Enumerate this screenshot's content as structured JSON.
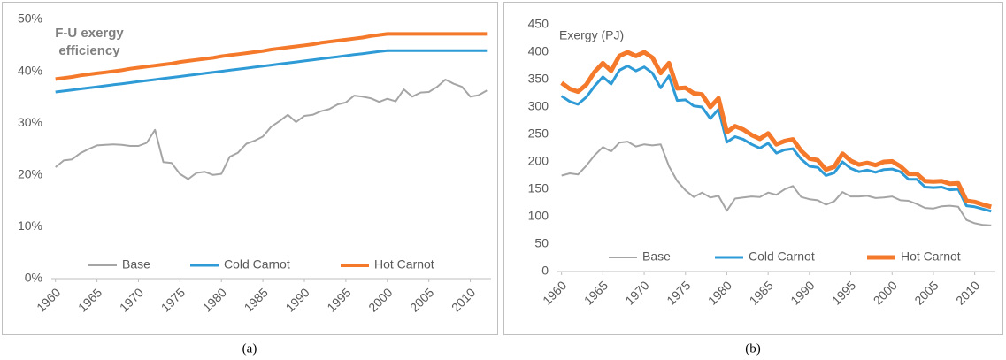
{
  "chart_data": [
    {
      "type": "line",
      "title": "F-U exergy efficiency",
      "caption": "(a)",
      "x": [
        1960,
        1961,
        1962,
        1963,
        1964,
        1965,
        1966,
        1967,
        1968,
        1969,
        1970,
        1971,
        1972,
        1973,
        1974,
        1975,
        1976,
        1977,
        1978,
        1979,
        1980,
        1981,
        1982,
        1983,
        1984,
        1985,
        1986,
        1987,
        1988,
        1989,
        1990,
        1991,
        1992,
        1993,
        1994,
        1995,
        1996,
        1997,
        1998,
        1999,
        2000,
        2001,
        2002,
        2003,
        2004,
        2005,
        2006,
        2007,
        2008,
        2009,
        2010,
        2011,
        2012
      ],
      "series": [
        {
          "name": "Base",
          "color": "#a5a5a5",
          "values": [
            21.5,
            22.8,
            23,
            24.2,
            25,
            25.7,
            25.8,
            25.9,
            25.8,
            25.6,
            25.6,
            26.2,
            28.7,
            22.5,
            22.3,
            20.2,
            19.2,
            20.4,
            20.6,
            20.0,
            20.2,
            23.5,
            24.3,
            26.0,
            26.6,
            27.4,
            29.3,
            30.4,
            31.6,
            30.2,
            31.4,
            31.6,
            32.3,
            32.7,
            33.6,
            34.0,
            35.3,
            35.1,
            34.8,
            34.1,
            34.7,
            34.2,
            36.5,
            35.1,
            35.9,
            36.0,
            37.0,
            38.4,
            37.6,
            37.0,
            35.1,
            35.4,
            36.3
          ]
        },
        {
          "name": "Cold Carnot",
          "color": "#2e9bd6",
          "values": [
            36.0,
            36.2,
            36.4,
            36.6,
            36.8,
            37.0,
            37.2,
            37.4,
            37.6,
            37.8,
            38.0,
            38.2,
            38.4,
            38.6,
            38.8,
            39.0,
            39.2,
            39.4,
            39.6,
            39.8,
            40.0,
            40.2,
            40.4,
            40.6,
            40.8,
            41.0,
            41.2,
            41.4,
            41.6,
            41.8,
            42.0,
            42.2,
            42.4,
            42.6,
            42.8,
            43.0,
            43.2,
            43.4,
            43.6,
            43.8,
            44.0,
            44.0,
            44.0,
            44.0,
            44.0,
            44.0,
            44.0,
            44.0,
            44.0,
            44.0,
            44.0,
            44.0,
            44.0
          ]
        },
        {
          "name": "Hot Carnot",
          "color": "#f4792b",
          "values": [
            38.5,
            38.7,
            38.9,
            39.2,
            39.4,
            39.6,
            39.8,
            40.0,
            40.2,
            40.5,
            40.7,
            40.9,
            41.1,
            41.3,
            41.5,
            41.8,
            42.0,
            42.2,
            42.4,
            42.6,
            42.9,
            43.1,
            43.3,
            43.5,
            43.7,
            43.9,
            44.2,
            44.4,
            44.6,
            44.8,
            45.0,
            45.2,
            45.5,
            45.7,
            45.9,
            46.1,
            46.3,
            46.5,
            46.8,
            47.0,
            47.2,
            47.2,
            47.2,
            47.2,
            47.2,
            47.2,
            47.2,
            47.2,
            47.2,
            47.2,
            47.2,
            47.2,
            47.2
          ]
        }
      ],
      "xlim": [
        1959.5,
        2012.5
      ],
      "xticks": [
        1960,
        1965,
        1970,
        1975,
        1980,
        1985,
        1990,
        1995,
        2000,
        2005,
        2010
      ],
      "ylim": [
        0,
        50
      ],
      "yticks": [
        {
          "value": 0,
          "label": "0%"
        },
        {
          "value": 10,
          "label": "10%"
        },
        {
          "value": 20,
          "label": "20%"
        },
        {
          "value": 30,
          "label": "30%"
        },
        {
          "value": 40,
          "label": "40%"
        },
        {
          "value": 50,
          "label": "50%"
        }
      ],
      "grid": false
    },
    {
      "type": "line",
      "y_label": "Exergy (PJ)",
      "caption": "(b)",
      "x": [
        1960,
        1961,
        1962,
        1963,
        1964,
        1965,
        1966,
        1967,
        1968,
        1969,
        1970,
        1971,
        1972,
        1973,
        1974,
        1975,
        1976,
        1977,
        1978,
        1979,
        1980,
        1981,
        1982,
        1983,
        1984,
        1985,
        1986,
        1987,
        1988,
        1989,
        1990,
        1991,
        1992,
        1993,
        1994,
        1995,
        1996,
        1997,
        1998,
        1999,
        2000,
        2001,
        2002,
        2003,
        2004,
        2005,
        2006,
        2007,
        2008,
        2009,
        2010,
        2011,
        2012
      ],
      "series": [
        {
          "name": "Base",
          "color": "#a5a5a5",
          "values": [
            175,
            179,
            177,
            193,
            212,
            227,
            219,
            235,
            237,
            228,
            232,
            230,
            232,
            192,
            165,
            148,
            136,
            144,
            135,
            138,
            111,
            133,
            135,
            137,
            136,
            144,
            140,
            150,
            156,
            136,
            132,
            130,
            122,
            128,
            145,
            137,
            137,
            138,
            134,
            135,
            137,
            130,
            129,
            123,
            116,
            115,
            119,
            120,
            118,
            94,
            88,
            85,
            84
          ]
        },
        {
          "name": "Cold Carnot",
          "color": "#2e9bd6",
          "values": [
            320,
            310,
            305,
            318,
            338,
            355,
            342,
            367,
            375,
            366,
            373,
            362,
            335,
            357,
            312,
            313,
            302,
            300,
            279,
            296,
            236,
            246,
            241,
            232,
            225,
            234,
            216,
            222,
            224,
            205,
            192,
            190,
            175,
            180,
            200,
            188,
            182,
            185,
            181,
            186,
            187,
            182,
            168,
            168,
            154,
            153,
            154,
            149,
            150,
            120,
            118,
            114,
            110
          ]
        },
        {
          "name": "Hot Carnot",
          "color": "#f4792b",
          "values": [
            344,
            333,
            328,
            341,
            364,
            380,
            366,
            393,
            400,
            393,
            400,
            390,
            362,
            380,
            334,
            335,
            325,
            323,
            300,
            316,
            254,
            265,
            259,
            249,
            242,
            252,
            232,
            238,
            241,
            220,
            206,
            203,
            186,
            191,
            215,
            202,
            195,
            198,
            194,
            200,
            201,
            192,
            178,
            178,
            165,
            164,
            165,
            160,
            161,
            129,
            127,
            122,
            118
          ]
        }
      ],
      "xlim": [
        1959.5,
        2012.5
      ],
      "xticks": [
        1960,
        1965,
        1970,
        1975,
        1980,
        1985,
        1990,
        1995,
        2000,
        2005,
        2010
      ],
      "ylim": [
        0,
        450
      ],
      "yticks": [
        0,
        50,
        100,
        150,
        200,
        250,
        300,
        350,
        400,
        450
      ],
      "grid": false
    }
  ]
}
